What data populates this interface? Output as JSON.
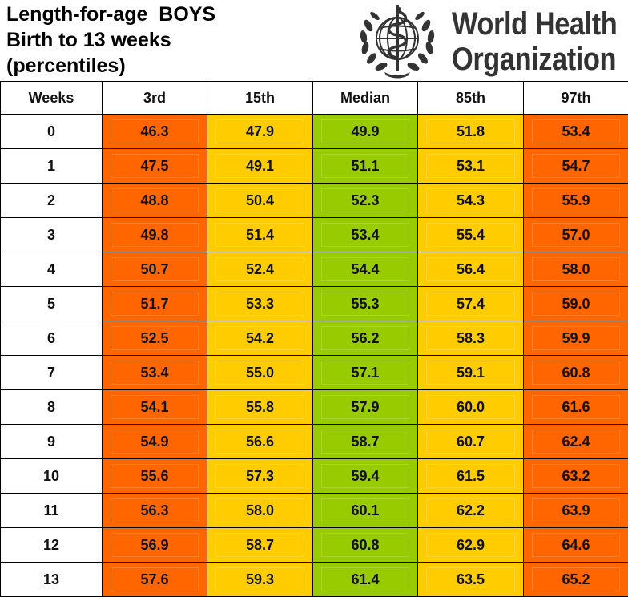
{
  "header": {
    "title_lines": [
      "Length-for-age  BOYS",
      "Birth to 13 weeks",
      "(percentiles)"
    ],
    "org_lines": [
      "World Health",
      "Organization"
    ],
    "emblem": "who-emblem-icon"
  },
  "table": {
    "headers": [
      "Weeks",
      "3rd",
      "15th",
      "Median",
      "85th",
      "97th"
    ],
    "rows": [
      [
        "0",
        "46.3",
        "47.9",
        "49.9",
        "51.8",
        "53.4"
      ],
      [
        "1",
        "47.5",
        "49.1",
        "51.1",
        "53.1",
        "54.7"
      ],
      [
        "2",
        "48.8",
        "50.4",
        "52.3",
        "54.3",
        "55.9"
      ],
      [
        "3",
        "49.8",
        "51.4",
        "53.4",
        "55.4",
        "57.0"
      ],
      [
        "4",
        "50.7",
        "52.4",
        "54.4",
        "56.4",
        "58.0"
      ],
      [
        "5",
        "51.7",
        "53.3",
        "55.3",
        "57.4",
        "59.0"
      ],
      [
        "6",
        "52.5",
        "54.2",
        "56.2",
        "58.3",
        "59.9"
      ],
      [
        "7",
        "53.4",
        "55.0",
        "57.1",
        "59.1",
        "60.8"
      ],
      [
        "8",
        "54.1",
        "55.8",
        "57.9",
        "60.0",
        "61.6"
      ],
      [
        "9",
        "54.9",
        "56.6",
        "58.7",
        "60.7",
        "62.4"
      ],
      [
        "10",
        "55.6",
        "57.3",
        "59.4",
        "61.5",
        "63.2"
      ],
      [
        "11",
        "56.3",
        "58.0",
        "60.1",
        "62.2",
        "63.9"
      ],
      [
        "12",
        "56.9",
        "58.7",
        "60.8",
        "62.9",
        "64.6"
      ],
      [
        "13",
        "57.6",
        "59.3",
        "61.4",
        "63.5",
        "65.2"
      ]
    ]
  },
  "colors": {
    "outer_percentile": "#ff6600",
    "inner_percentile": "#ffcc00",
    "median": "#99cc00"
  }
}
